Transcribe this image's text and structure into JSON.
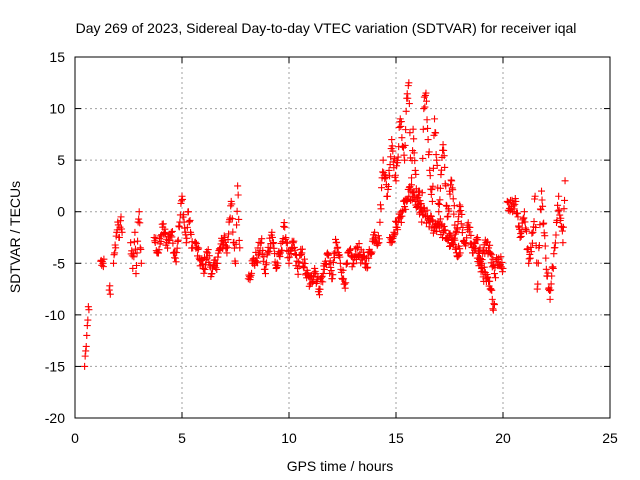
{
  "chart_data": {
    "type": "scatter",
    "title": "Day 269 of 2023, Sidereal Day-to-day VTEC variation (SDTVAR) for receiver iqal",
    "xlabel": "GPS time / hours",
    "ylabel": "SDTVAR / TECUs",
    "xlim": [
      0,
      25
    ],
    "ylim": [
      -20,
      15
    ],
    "xticks": [
      "0",
      "5",
      "10",
      "15",
      "20",
      "25"
    ],
    "yticks": [
      "15",
      "10",
      "5",
      "0",
      "-5",
      "-10",
      "-15",
      "-20"
    ],
    "grid": true,
    "marker": "plus",
    "color": "#ff0000",
    "series": [
      {
        "name": "SDTVAR",
        "segments": [
          {
            "x": [
              0.45,
              0.5,
              0.55,
              0.6,
              0.65
            ],
            "y": [
              -15,
              -13.5,
              -12,
              -10.5,
              -9.5
            ]
          },
          {
            "x": [
              1.2,
              1.25,
              1.3,
              1.35
            ],
            "y": [
              -4.8,
              -5.2,
              -5.0,
              -4.6
            ]
          },
          {
            "x": [
              1.6,
              1.65
            ],
            "y": [
              -7.6,
              -8.0
            ]
          },
          {
            "x": [
              1.8,
              1.85,
              1.9,
              1.95,
              2.0,
              2.05,
              2.1,
              2.15,
              2.2
            ],
            "y": [
              -5.0,
              -4.0,
              -3.5,
              -2.0,
              -1.0,
              -2.5,
              -1.5,
              -0.5,
              -2.0
            ]
          },
          {
            "x": [
              2.6,
              2.7,
              2.8,
              2.85,
              2.9,
              2.95,
              3.0,
              3.05,
              3.1
            ],
            "y": [
              -3.0,
              -5.5,
              -2.0,
              -6.0,
              -4.0,
              -1.0,
              0.0,
              -3.5,
              -5.0
            ]
          },
          {
            "x": [
              3.7,
              3.9,
              4.1,
              4.3,
              4.5,
              4.7,
              4.9,
              5.0,
              5.1,
              5.2,
              5.3,
              5.4,
              5.5
            ],
            "y": [
              -2.5,
              -4.0,
              -1.5,
              -3.0,
              -2.0,
              -4.5,
              -1.0,
              1.5,
              -1.0,
              -3.0,
              0.0,
              -2.0,
              -3.5
            ]
          },
          {
            "x": [
              5.6,
              5.8,
              6.0,
              6.2,
              6.4,
              6.6,
              6.8,
              7.0,
              7.1,
              7.2,
              7.3,
              7.4,
              7.5,
              7.6,
              7.7
            ],
            "y": [
              -3.0,
              -4.5,
              -5.5,
              -4.0,
              -6.0,
              -5.0,
              -3.5,
              -2.5,
              -4.0,
              -1.0,
              1.0,
              -3.0,
              -5.0,
              2.5,
              -3.5
            ]
          },
          {
            "x": [
              8.1,
              8.3,
              8.5,
              8.7,
              8.9,
              9.0,
              9.2,
              9.4,
              9.6,
              9.8,
              10.0,
              10.2,
              10.4,
              10.6,
              10.8,
              11.0,
              11.2,
              11.4,
              11.6,
              11.8,
              12.0,
              12.2,
              12.4,
              12.6,
              12.8,
              13.0,
              13.2,
              13.4,
              13.6,
              13.8,
              14.0,
              14.2,
              14.4,
              14.6,
              14.8,
              15.0,
              15.2,
              15.4,
              15.5,
              15.6,
              15.7,
              15.8,
              15.9,
              16.0,
              16.1,
              16.2,
              16.3,
              16.4,
              16.5,
              16.6,
              16.7,
              16.8,
              16.9,
              17.0,
              17.2,
              17.4,
              17.6,
              17.8,
              18.0,
              18.2,
              18.4,
              18.6,
              18.8,
              19.0,
              19.2,
              19.4,
              19.6,
              19.8,
              20.0
            ],
            "y": [
              -6.5,
              -5.0,
              -4.5,
              -3.0,
              -6.0,
              -4.0,
              -2.0,
              -5.5,
              -4.0,
              -1.5,
              -5.0,
              -3.0,
              -5.5,
              -4.0,
              -6.0,
              -7.0,
              -5.5,
              -7.5,
              -6.0,
              -4.0,
              -6.5,
              -3.0,
              -5.0,
              -7.0,
              -4.0,
              -5.0,
              -3.5,
              -4.5,
              -5.0,
              -4.0,
              -2.0,
              -3.0,
              5.0,
              1.5,
              7.0,
              3.0,
              9.0,
              5.0,
              11.0,
              12.5,
              2.0,
              8.0,
              4.0,
              0.5,
              2.0,
              -1.0,
              10.0,
              11.5,
              7.0,
              3.5,
              1.0,
              9.0,
              5.0,
              0.0,
              6.5,
              -0.5,
              3.0,
              -2.0,
              0.5,
              -3.0,
              -1.5,
              -4.0,
              -2.5,
              -5.0,
              -3.0,
              -4.0,
              -6.0,
              -4.5,
              -5.5
            ]
          },
          {
            "x": [
              14.7,
              14.8,
              14.9,
              15.0,
              15.1,
              15.2,
              15.3,
              15.4,
              15.5,
              15.6,
              15.7,
              15.8,
              15.9,
              16.0,
              16.2,
              16.4,
              16.6,
              16.8,
              17.0,
              17.2,
              17.4,
              17.6,
              17.8,
              18.0
            ],
            "y": [
              -2.5,
              -3.0,
              -2.0,
              -1.5,
              -1.0,
              -0.5,
              0.0,
              0.5,
              1.0,
              1.5,
              2.0,
              1.5,
              1.0,
              0.5,
              0.0,
              -0.5,
              -1.0,
              -1.5,
              -1.0,
              -2.0,
              -2.5,
              -3.0,
              -3.5,
              -4.0
            ]
          },
          {
            "x": [
              18.8,
              19.0,
              19.2,
              19.4,
              19.5,
              19.6
            ],
            "y": [
              -4.5,
              -5.5,
              -6.5,
              -7.5,
              -8.5,
              -9.0
            ]
          },
          {
            "x": [
              20.2,
              20.4,
              20.6,
              20.7,
              20.8,
              21.0,
              21.2,
              21.4,
              21.5,
              21.6,
              21.8,
              22.0,
              22.2,
              22.4,
              22.6,
              22.8,
              22.9
            ],
            "y": [
              1.0,
              0.5,
              1.0,
              -0.5,
              -2.5,
              0.0,
              -5.0,
              -2.0,
              1.5,
              -7.5,
              2.0,
              -4.5,
              -8.5,
              -3.5,
              1.5,
              -3.0,
              3.0
            ]
          }
        ]
      }
    ]
  }
}
